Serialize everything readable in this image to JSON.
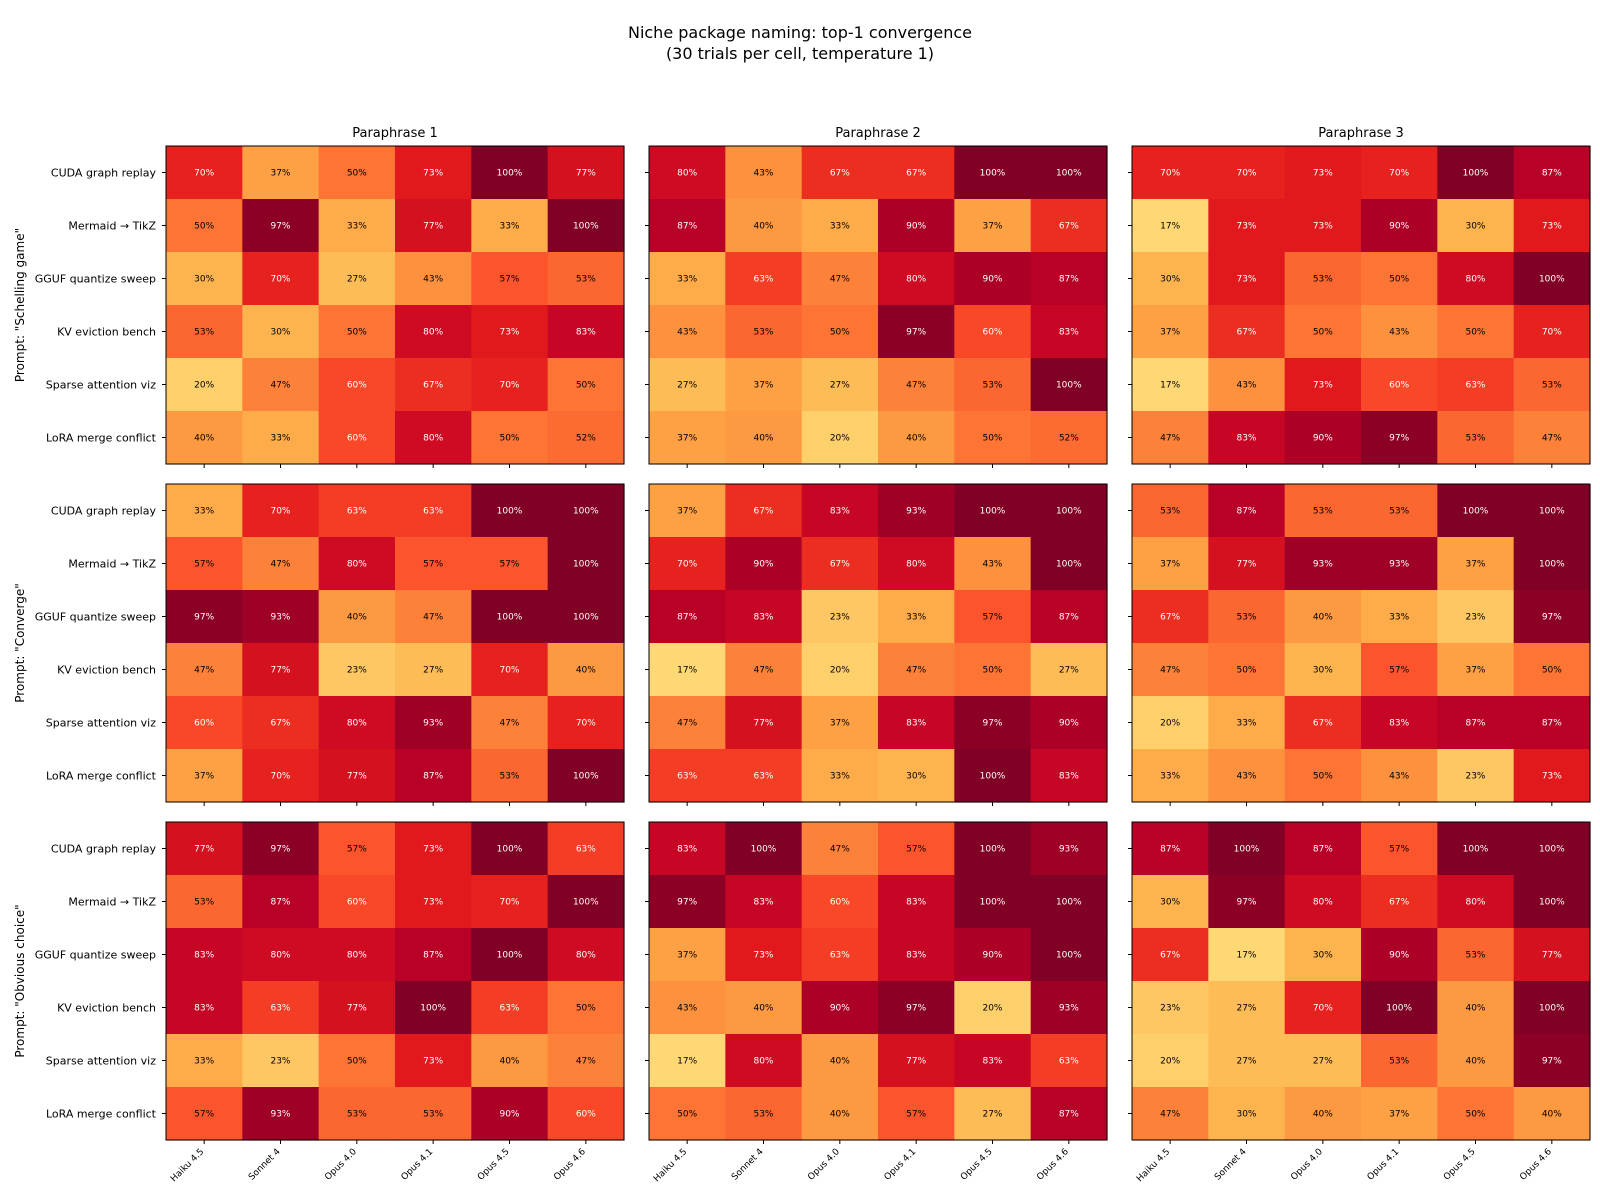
{
  "chart_data": {
    "type": "heatmap",
    "title_line1": "Niche package naming: top-1 convergence",
    "title_line2": "(30 trials per cell, temperature 1)",
    "columns": [
      "Paraphrase 1",
      "Paraphrase 2",
      "Paraphrase 3"
    ],
    "rows": [
      "Prompt: \"Schelling game\"",
      "Prompt: \"Converge\"",
      "Prompt: \"Obvious choice\""
    ],
    "tasks": [
      "CUDA graph replay",
      "Mermaid → TikZ",
      "GGUF quantize sweep",
      "KV eviction bench",
      "Sparse attention viz",
      "LoRA merge conflict"
    ],
    "models": [
      "Haiku 4.5",
      "Sonnet 4",
      "Opus 4.0",
      "Opus 4.1",
      "Opus 4.5",
      "Opus 4.6"
    ],
    "value_unit": "%",
    "value_range": [
      0,
      100
    ],
    "colormap": "YlOrRd",
    "panels": [
      [
        [
          [
            70,
            37,
            50,
            73,
            100,
            77
          ],
          [
            50,
            97,
            33,
            77,
            33,
            100
          ],
          [
            30,
            70,
            27,
            43,
            57,
            53
          ],
          [
            53,
            30,
            50,
            80,
            73,
            83
          ],
          [
            20,
            47,
            60,
            67,
            70,
            50
          ],
          [
            40,
            33,
            60,
            80,
            50,
            52
          ]
        ],
        [
          [
            80,
            43,
            67,
            67,
            100,
            100
          ],
          [
            87,
            40,
            33,
            90,
            37,
            67
          ],
          [
            33,
            63,
            47,
            80,
            90,
            87
          ],
          [
            43,
            53,
            50,
            97,
            60,
            83
          ],
          [
            27,
            37,
            27,
            47,
            53,
            100
          ],
          [
            37,
            40,
            20,
            40,
            50,
            52
          ]
        ],
        [
          [
            70,
            70,
            73,
            70,
            100,
            87
          ],
          [
            17,
            73,
            73,
            90,
            30,
            73
          ],
          [
            30,
            73,
            53,
            50,
            80,
            100
          ],
          [
            37,
            67,
            50,
            43,
            50,
            70
          ],
          [
            17,
            43,
            73,
            60,
            63,
            53
          ],
          [
            47,
            83,
            90,
            97,
            53,
            47
          ]
        ]
      ],
      [
        [
          [
            33,
            70,
            63,
            63,
            100,
            100
          ],
          [
            57,
            47,
            80,
            57,
            57,
            100
          ],
          [
            97,
            93,
            40,
            47,
            100,
            100
          ],
          [
            47,
            77,
            23,
            27,
            70,
            40
          ],
          [
            60,
            67,
            80,
            93,
            47,
            70
          ],
          [
            37,
            70,
            77,
            87,
            53,
            100
          ]
        ],
        [
          [
            37,
            67,
            83,
            93,
            100,
            100
          ],
          [
            70,
            90,
            67,
            80,
            43,
            100
          ],
          [
            87,
            83,
            23,
            33,
            57,
            87
          ],
          [
            17,
            47,
            20,
            47,
            50,
            27
          ],
          [
            47,
            77,
            37,
            83,
            97,
            90
          ],
          [
            63,
            63,
            33,
            30,
            100,
            83
          ]
        ],
        [
          [
            53,
            87,
            53,
            53,
            100,
            100
          ],
          [
            37,
            77,
            93,
            93,
            37,
            100
          ],
          [
            67,
            53,
            40,
            33,
            23,
            97
          ],
          [
            47,
            50,
            30,
            57,
            37,
            50
          ],
          [
            20,
            33,
            67,
            83,
            87,
            87
          ],
          [
            33,
            43,
            50,
            43,
            23,
            73
          ]
        ]
      ],
      [
        [
          [
            77,
            97,
            57,
            73,
            100,
            63
          ],
          [
            53,
            87,
            60,
            73,
            70,
            100
          ],
          [
            83,
            80,
            80,
            87,
            100,
            80
          ],
          [
            83,
            63,
            77,
            100,
            63,
            50
          ],
          [
            33,
            23,
            50,
            73,
            40,
            47
          ],
          [
            57,
            93,
            53,
            53,
            90,
            60
          ]
        ],
        [
          [
            83,
            100,
            47,
            57,
            100,
            93
          ],
          [
            97,
            83,
            60,
            83,
            100,
            100
          ],
          [
            37,
            73,
            63,
            83,
            90,
            100
          ],
          [
            43,
            40,
            90,
            97,
            20,
            93
          ],
          [
            17,
            80,
            40,
            77,
            83,
            63
          ],
          [
            50,
            53,
            40,
            57,
            27,
            87
          ]
        ],
        [
          [
            87,
            100,
            87,
            57,
            100,
            100
          ],
          [
            30,
            97,
            80,
            67,
            80,
            100
          ],
          [
            67,
            17,
            30,
            90,
            53,
            77
          ],
          [
            23,
            27,
            70,
            100,
            40,
            100
          ],
          [
            20,
            27,
            27,
            53,
            40,
            97
          ],
          [
            47,
            30,
            40,
            37,
            50,
            40
          ]
        ]
      ]
    ]
  }
}
